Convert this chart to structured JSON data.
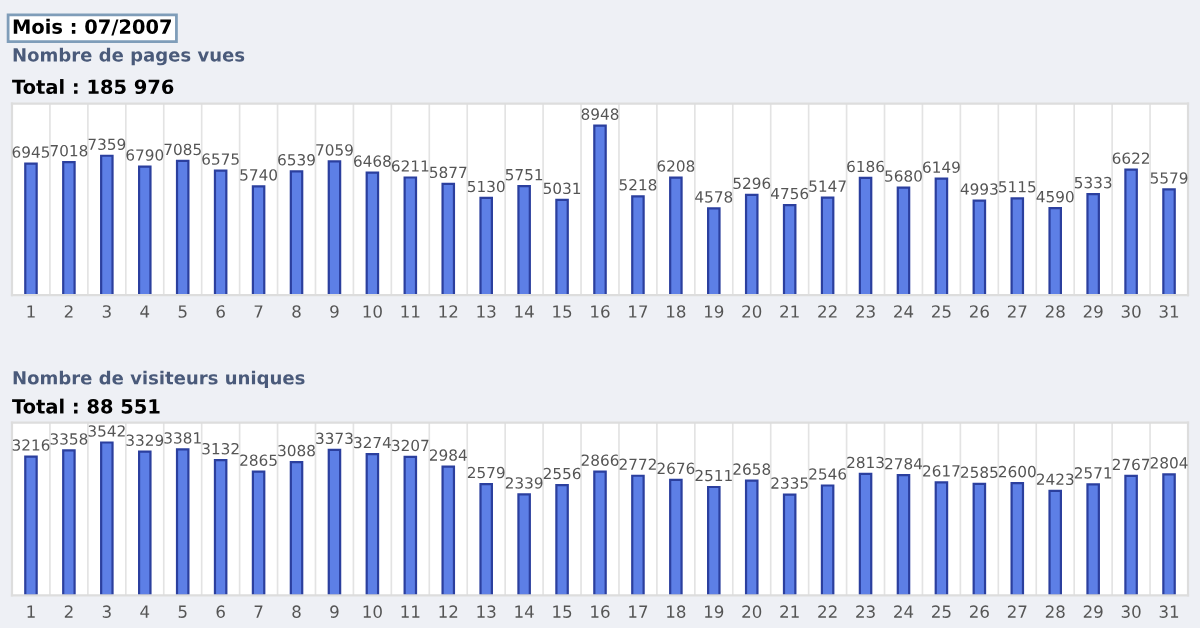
{
  "chart_data": [
    {
      "type": "bar",
      "title": "Nombre de pages vues",
      "subtitle": "Total : 185 976",
      "annotations": [
        "Mois : 07/2007"
      ],
      "categories": [
        "1",
        "2",
        "3",
        "4",
        "5",
        "6",
        "7",
        "8",
        "9",
        "10",
        "11",
        "12",
        "13",
        "14",
        "15",
        "16",
        "17",
        "18",
        "19",
        "20",
        "21",
        "22",
        "23",
        "24",
        "25",
        "26",
        "27",
        "28",
        "29",
        "30",
        "31"
      ],
      "values": [
        6945,
        7018,
        7359,
        6790,
        7085,
        6575,
        5740,
        6539,
        7059,
        6468,
        6211,
        5877,
        5130,
        5751,
        5031,
        8948,
        5218,
        6208,
        4578,
        5296,
        4756,
        5147,
        6186,
        5680,
        6149,
        4993,
        5115,
        4590,
        5333,
        6622,
        5579
      ],
      "color": "#5d7fe6",
      "data_labels": true,
      "grid": "x"
    },
    {
      "type": "bar",
      "title": "Nombre de visiteurs uniques",
      "subtitle": "Total : 88 551",
      "categories": [
        "1",
        "2",
        "3",
        "4",
        "5",
        "6",
        "7",
        "8",
        "9",
        "10",
        "11",
        "12",
        "13",
        "14",
        "15",
        "16",
        "17",
        "18",
        "19",
        "20",
        "21",
        "22",
        "23",
        "24",
        "25",
        "26",
        "27",
        "28",
        "29",
        "30",
        "31"
      ],
      "values": [
        3216,
        3358,
        3542,
        3329,
        3381,
        3132,
        2865,
        3088,
        3373,
        3274,
        3207,
        2984,
        2579,
        2339,
        2556,
        2866,
        2772,
        2676,
        2511,
        2658,
        2335,
        2546,
        2813,
        2784,
        2617,
        2585,
        2600,
        2423,
        2571,
        2767,
        2804
      ],
      "color": "#5d7fe6",
      "data_labels": true,
      "grid": "x"
    }
  ]
}
